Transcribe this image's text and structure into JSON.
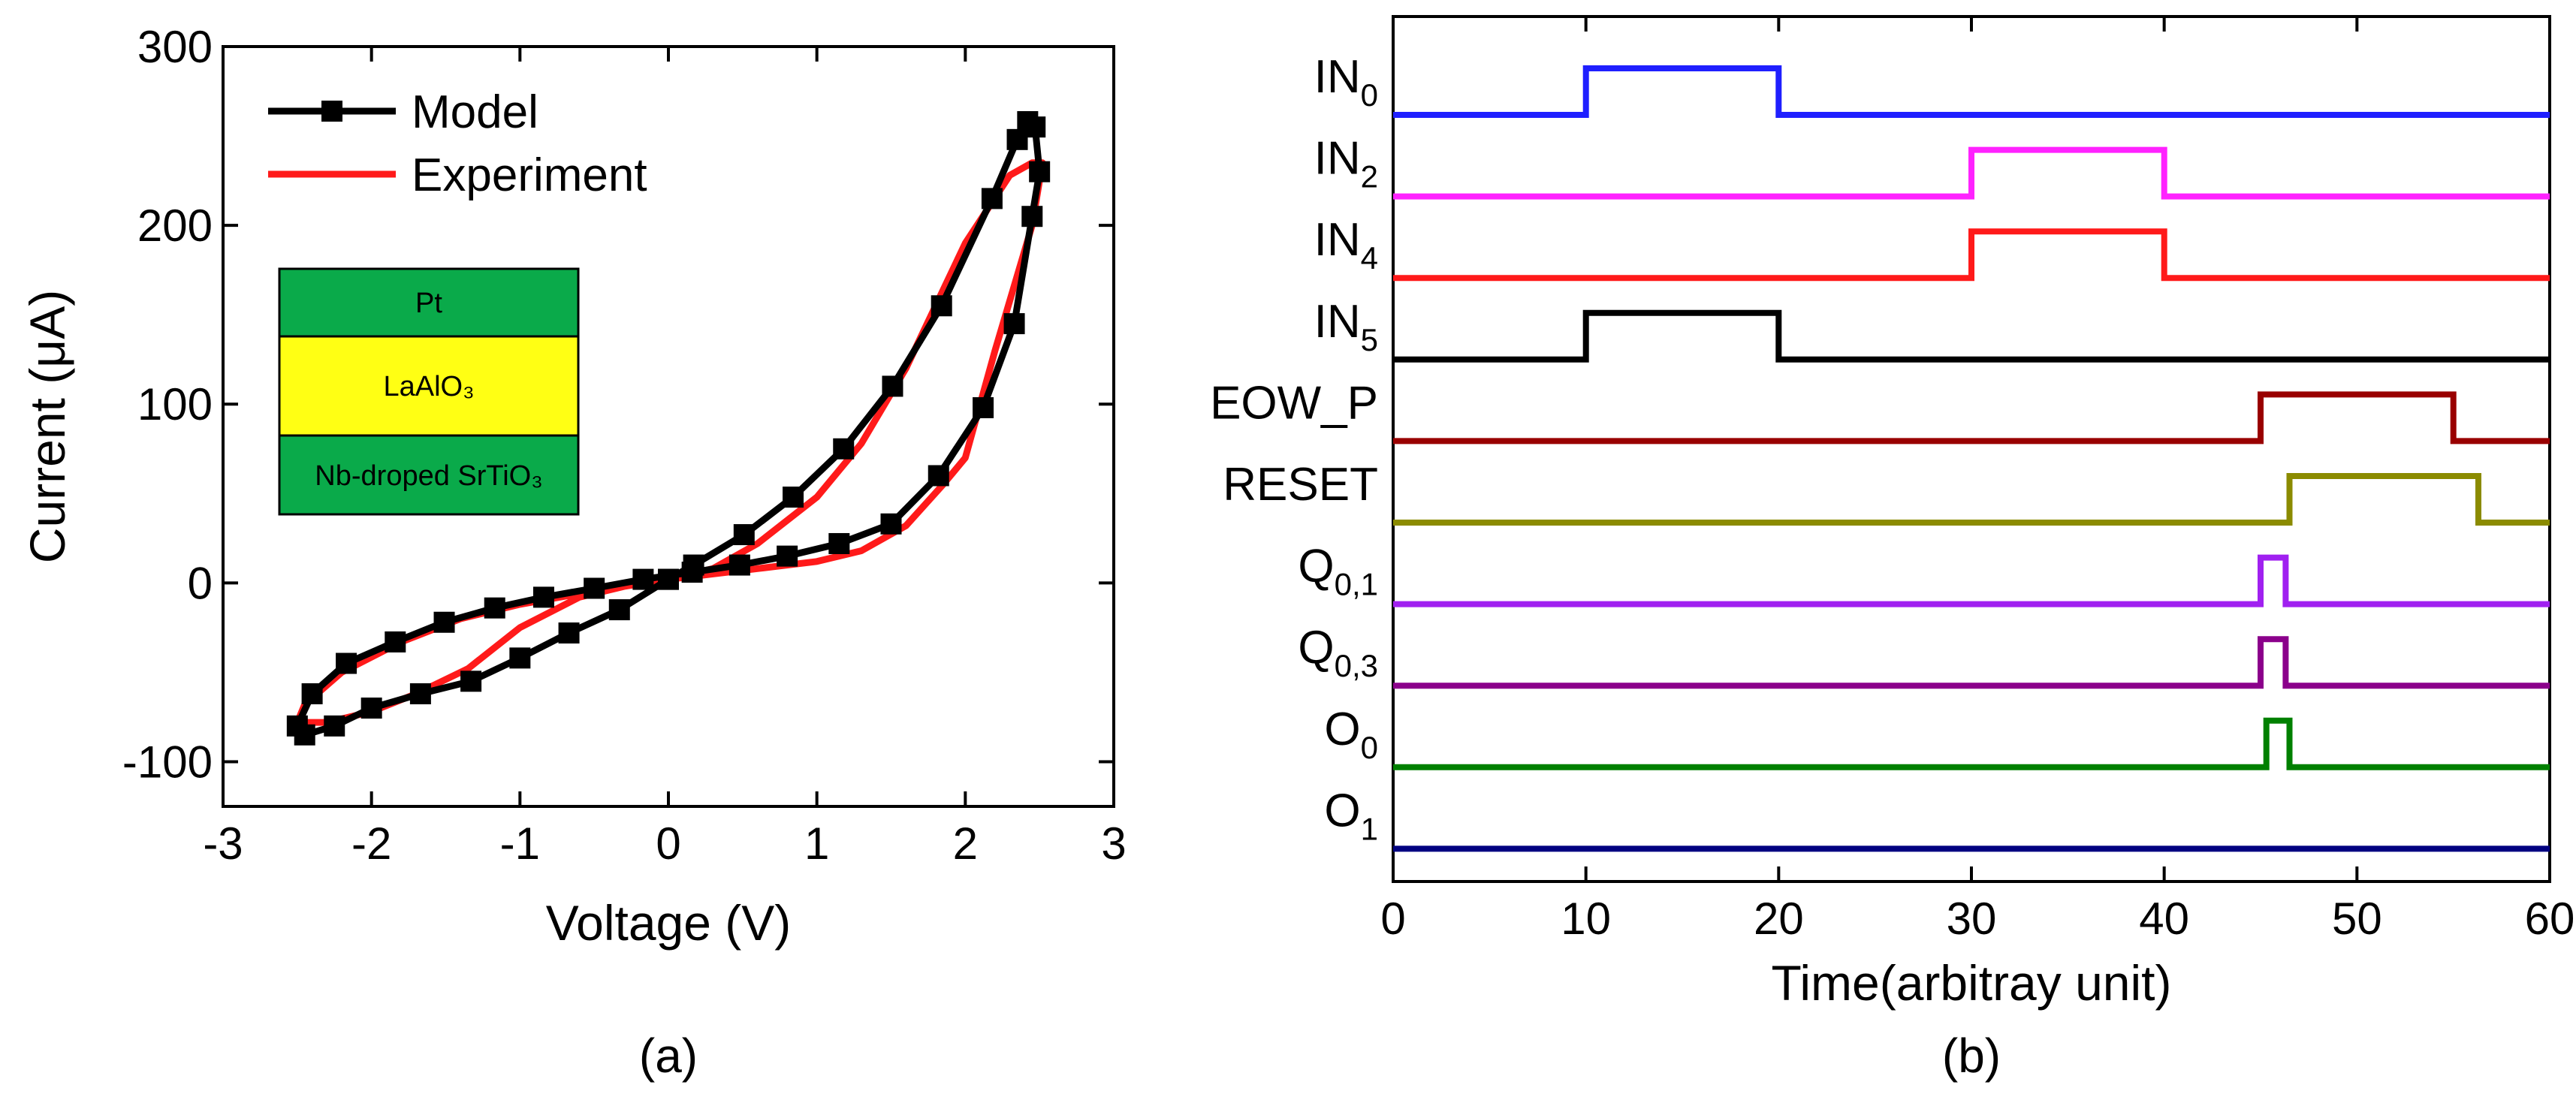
{
  "panels": {
    "a": {
      "label": "(a)",
      "xlabel": "Voltage (V)",
      "ylabel": "Current (μA)",
      "legend": [
        {
          "name": "Model",
          "color": "#000000",
          "marker": "square"
        },
        {
          "name": "Experiment",
          "color": "#ff1a1a",
          "marker": "none"
        }
      ],
      "stack": [
        {
          "label": "Pt",
          "color": "#0aaa4a"
        },
        {
          "label": "LaAlO₃",
          "color": "#ffff14"
        },
        {
          "label": "Nb-droped SrTiO₃",
          "color": "#0aaa4a"
        }
      ]
    },
    "b": {
      "label": "(b)",
      "xlabel": "Time(arbitray unit)"
    }
  },
  "chart_data": [
    {
      "type": "line",
      "xlim": [
        -3,
        3
      ],
      "ylim": [
        -125,
        300
      ],
      "xticks": [
        "-3",
        "-2",
        "-1",
        "0",
        "1",
        "2",
        "3"
      ],
      "yticks": [
        "-100",
        "0",
        "100",
        "200",
        "300"
      ],
      "xtick_values": [
        -3,
        -2,
        -1,
        0,
        1,
        2,
        3
      ],
      "ytick_values": [
        -100,
        0,
        100,
        200,
        300
      ],
      "series": [
        {
          "name": "Model",
          "color": "#000000",
          "marker": "square",
          "x": [
            0,
            0.17,
            0.51,
            0.84,
            1.18,
            1.51,
            1.84,
            2.18,
            2.35,
            2.42,
            2.47,
            2.5,
            2.45,
            2.33,
            2.12,
            1.82,
            1.5,
            1.15,
            0.8,
            0.48,
            0.16,
            -0.17,
            -0.5,
            -0.84,
            -1.17,
            -1.51,
            -1.84,
            -2.17,
            -2.4,
            -2.5,
            -2.45,
            -2.25,
            -2.0,
            -1.67,
            -1.33,
            -1.0,
            -0.67,
            -0.33,
            0
          ],
          "y": [
            2,
            10,
            27,
            48,
            75,
            110,
            155,
            215,
            248,
            258,
            255,
            230,
            205,
            145,
            98,
            60,
            33,
            22,
            15,
            10,
            6,
            2,
            -3,
            -8,
            -14,
            -22,
            -33,
            -45,
            -62,
            -80,
            -85,
            -80,
            -70,
            -62,
            -55,
            -42,
            -28,
            -15,
            2
          ]
        },
        {
          "name": "Experiment",
          "color": "#ff1a1a",
          "marker": "none",
          "x": [
            0,
            0.3,
            0.6,
            1.0,
            1.3,
            1.6,
            2.0,
            2.3,
            2.45,
            2.52,
            2.45,
            2.2,
            2.0,
            1.85,
            1.6,
            1.3,
            1.0,
            0.6,
            0.2,
            -0.2,
            -0.6,
            -1.0,
            -1.4,
            -1.8,
            -2.2,
            -2.45,
            -2.5,
            -2.3,
            -2.0,
            -1.7,
            -1.35,
            -1.0,
            -0.6,
            -0.3,
            0
          ],
          "y": [
            2,
            8,
            22,
            48,
            78,
            120,
            190,
            228,
            235,
            235,
            200,
            130,
            70,
            55,
            32,
            18,
            12,
            8,
            4,
            0,
            -6,
            -12,
            -20,
            -33,
            -50,
            -68,
            -78,
            -78,
            -72,
            -62,
            -48,
            -25,
            -8,
            -2,
            2
          ]
        }
      ]
    },
    {
      "type": "line",
      "xlim": [
        0,
        60
      ],
      "xticks": [
        "0",
        "10",
        "20",
        "30",
        "40",
        "50",
        "60"
      ],
      "xtick_values": [
        0,
        10,
        20,
        30,
        40,
        50,
        60
      ],
      "series": [
        {
          "name": "IN",
          "sub": "0",
          "color": "#1f1fff",
          "high": [
            [
              10,
              20
            ]
          ]
        },
        {
          "name": "IN",
          "sub": "2",
          "color": "#ff22ff",
          "high": [
            [
              30,
              40
            ]
          ]
        },
        {
          "name": "IN",
          "sub": "4",
          "color": "#ff1a1a",
          "high": [
            [
              30,
              40
            ]
          ]
        },
        {
          "name": "IN",
          "sub": "5",
          "color": "#000000",
          "high": [
            [
              10,
              20
            ]
          ]
        },
        {
          "name": "EOW_P",
          "sub": "",
          "color": "#990000",
          "high": [
            [
              45,
              55
            ]
          ]
        },
        {
          "name": "RESET",
          "sub": "",
          "color": "#8b8b00",
          "high": [
            [
              46.5,
              56.3
            ]
          ]
        },
        {
          "name": "Q",
          "sub": "0,1",
          "color": "#a020f0",
          "high": [
            [
              45,
              46.3
            ]
          ]
        },
        {
          "name": "Q",
          "sub": "0,3",
          "color": "#8b008b",
          "high": [
            [
              45,
              46.3
            ]
          ]
        },
        {
          "name": "O",
          "sub": "0",
          "color": "#008000",
          "high": [
            [
              45.3,
              46.5
            ]
          ]
        },
        {
          "name": "O",
          "sub": "1",
          "color": "#000080",
          "high": []
        }
      ]
    }
  ]
}
